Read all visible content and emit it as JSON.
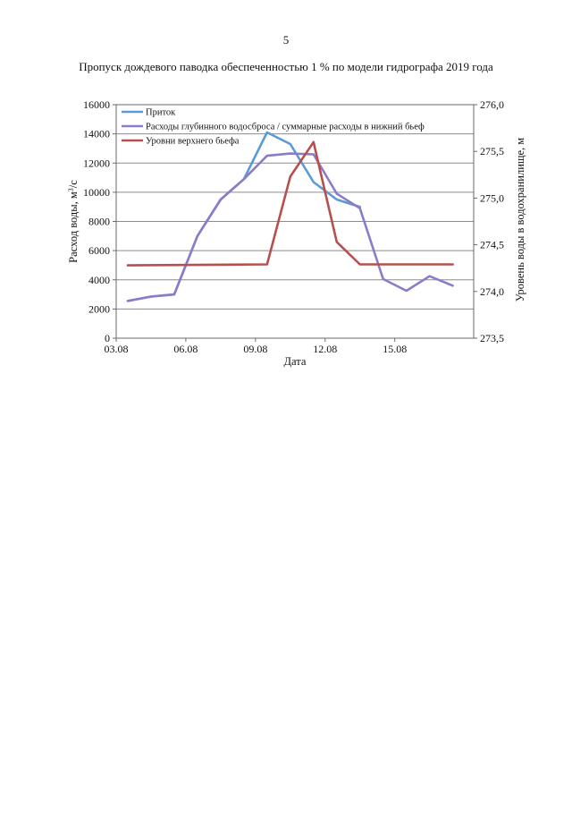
{
  "page_number": "5",
  "chart_data": {
    "type": "line",
    "title": "Пропуск дождевого паводка обеспеченностью 1 % по модели гидрографа 2019 года",
    "xlabel": "Дата",
    "ylabel_left_main": "Расход воды, м",
    "ylabel_left_sup": "3",
    "ylabel_left_tail": "/с",
    "ylabel_right": "Уровень воды в водохранилище, м",
    "x_tick_labels": [
      "03.08",
      "06.08",
      "09.08",
      "12.08",
      "15.08"
    ],
    "x_tick_days": [
      3,
      6,
      9,
      12,
      15
    ],
    "xlim": [
      3,
      18.4
    ],
    "ylim_left": [
      0,
      16000
    ],
    "yticks_left": [
      0,
      2000,
      4000,
      6000,
      8000,
      10000,
      12000,
      14000,
      16000
    ],
    "ylim_right": [
      273.5,
      276.0
    ],
    "yticks_right": [
      "273,5",
      "274,0",
      "274,5",
      "275,0",
      "275,5",
      "276,0"
    ],
    "yticks_right_values": [
      273.5,
      274.0,
      274.5,
      275.0,
      275.5,
      276.0
    ],
    "grid": true,
    "legend": "top-left",
    "series": [
      {
        "name": "Приток",
        "color": "#5b9bd5",
        "axis": "left",
        "x": [
          3.5,
          4.5,
          5.5,
          6.5,
          7.5,
          8.5,
          9.5,
          10.5,
          11.5,
          12.5,
          13.5
        ],
        "values": [
          2550,
          2850,
          3000,
          7000,
          9500,
          10900,
          14100,
          13300,
          10700,
          9500,
          9000
        ]
      },
      {
        "name": "Расходы глубинного водосброса / суммарные расходы в нижний бьеф",
        "color": "#8a7cc8",
        "axis": "left",
        "x": [
          3.5,
          4.5,
          5.5,
          6.5,
          7.5,
          8.5,
          9.5,
          10.5,
          11.5,
          12.5,
          13.5,
          14.5,
          15.5,
          16.5,
          17.5
        ],
        "values": [
          2550,
          2850,
          3000,
          7000,
          9500,
          10900,
          12500,
          12650,
          12600,
          9900,
          8900,
          4050,
          3250,
          4250,
          3600
        ]
      },
      {
        "name": "Уровни верхнего бьефа",
        "color": "#b5504f",
        "axis": "right",
        "x": [
          3.5,
          9.5,
          10.5,
          11.5,
          12.5,
          13.5,
          17.5
        ],
        "values": [
          274.28,
          274.29,
          275.23,
          275.6,
          274.53,
          274.29,
          274.29
        ]
      }
    ]
  }
}
